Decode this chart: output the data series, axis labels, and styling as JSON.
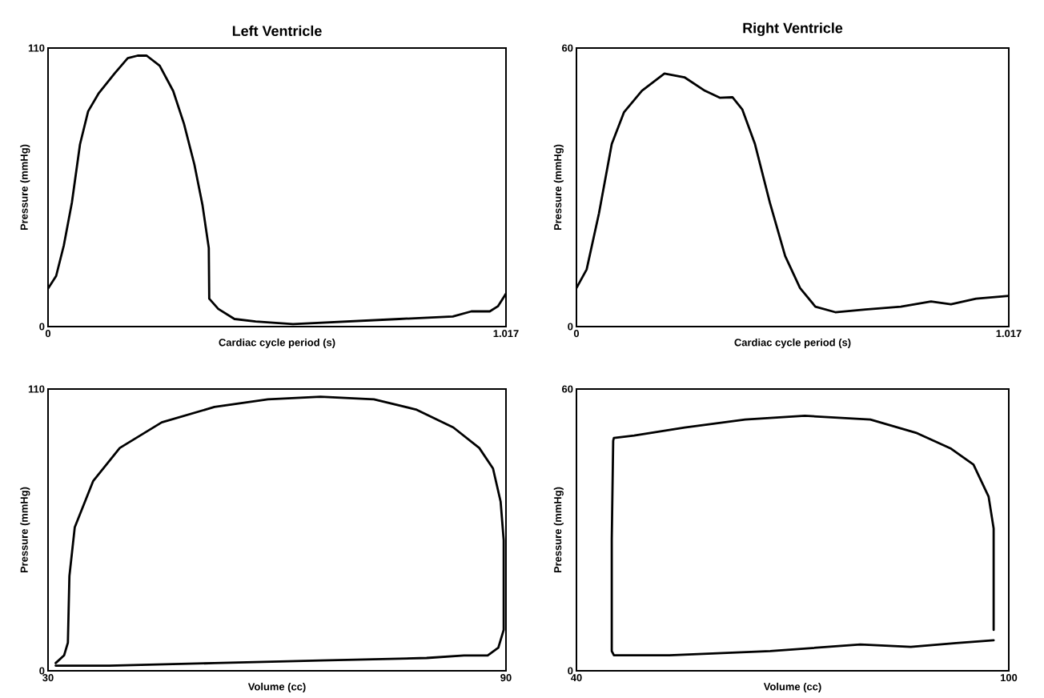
{
  "chart_data": [
    {
      "type": "line",
      "title": "Left Ventricle",
      "xlabel": "Cardiac cycle period (s)",
      "ylabel": "Pressure (mmHg)",
      "xlim": [
        0,
        1.017
      ],
      "ylim": [
        0,
        110
      ],
      "xticks": [
        0,
        1.017
      ],
      "yticks": [
        0,
        110
      ],
      "series": [
        {
          "color": "#000000",
          "x": [
            0,
            0.018,
            0.035,
            0.053,
            0.071,
            0.089,
            0.112,
            0.148,
            0.177,
            0.199,
            0.219,
            0.248,
            0.278,
            0.302,
            0.325,
            0.343,
            0.357,
            0.358,
            0.378,
            0.414,
            0.461,
            0.544,
            0.662,
            0.78,
            0.899,
            0.94,
            0.981,
            0.999,
            1.017
          ],
          "values": [
            15,
            20,
            32,
            49,
            72,
            85,
            92,
            100,
            106,
            107,
            107,
            103,
            93,
            80,
            64,
            48,
            31,
            11,
            7,
            3,
            2,
            1,
            2,
            3,
            4,
            6,
            6,
            8,
            13
          ]
        }
      ]
    },
    {
      "type": "line",
      "title": "Right Ventricle",
      "xlabel": "Cardiac cycle period (s)",
      "ylabel": "Pressure (mmHg)",
      "xlim": [
        0,
        1.017
      ],
      "ylim": [
        0,
        60
      ],
      "xticks": [
        0,
        1.017
      ],
      "yticks": [
        0,
        60
      ],
      "series": [
        {
          "color": "#000000",
          "x": [
            0,
            0.024,
            0.053,
            0.083,
            0.112,
            0.154,
            0.207,
            0.254,
            0.302,
            0.337,
            0.367,
            0.39,
            0.42,
            0.455,
            0.491,
            0.526,
            0.562,
            0.609,
            0.68,
            0.763,
            0.834,
            0.881,
            0.94,
            1.017
          ],
          "values": [
            8.3,
            12.3,
            24.4,
            39.3,
            46.2,
            50.8,
            54.5,
            53.7,
            50.8,
            49.3,
            49.4,
            46.8,
            39.3,
            26.7,
            15.2,
            8.3,
            4.3,
            3.1,
            3.7,
            4.3,
            5.4,
            4.8,
            6.0,
            6.6
          ]
        }
      ]
    },
    {
      "type": "line",
      "xlabel": "Volume (cc)",
      "ylabel": "Pressure (mmHg)",
      "xlim": [
        30,
        90
      ],
      "ylim": [
        0,
        110
      ],
      "xticks": [
        30,
        90
      ],
      "yticks": [
        0,
        110
      ],
      "series": [
        {
          "color": "#000000",
          "x": [
            31.0,
            38.0,
            51.8,
            65.7,
            79.6,
            84.5,
            87.6,
            89.0,
            89.7,
            89.7,
            89.3,
            88.3,
            86.5,
            83.1,
            78.2,
            72.7,
            65.7,
            58.8,
            51.8,
            44.9,
            39.4,
            35.9,
            33.5,
            32.8,
            32.6,
            32.1,
            31.0
          ],
          "values": [
            2,
            2,
            3,
            4,
            5,
            6,
            6,
            9,
            16,
            51,
            66,
            79,
            87,
            95,
            102,
            106,
            107,
            106,
            103,
            97,
            87,
            74,
            56,
            37,
            11,
            6,
            3
          ]
        }
      ]
    },
    {
      "type": "line",
      "xlabel": "Volume (cc)",
      "ylabel": "Pressure (mmHg)",
      "xlim": [
        40,
        100
      ],
      "ylim": [
        0,
        60
      ],
      "xticks": [
        40,
        100
      ],
      "yticks": [
        0,
        60
      ],
      "series": [
        {
          "color": "#000000",
          "x": [
            97.9,
            97.9,
            97.2,
            95.1,
            92.0,
            87.1,
            80.8,
            71.7,
            63.4,
            55.0,
            48.0,
            45.2,
            45.1,
            44.9,
            44.9,
            45.2,
            52.9,
            66.9,
            79.4,
            86.4,
            92.7,
            97.9
          ],
          "values": [
            8.7,
            30.3,
            37.1,
            43.9,
            47.3,
            50.7,
            53.5,
            54.3,
            53.5,
            51.8,
            50.1,
            49.6,
            49.0,
            28.0,
            4.2,
            3.3,
            3.3,
            4.2,
            5.6,
            5.1,
            5.9,
            6.5
          ]
        }
      ]
    }
  ]
}
